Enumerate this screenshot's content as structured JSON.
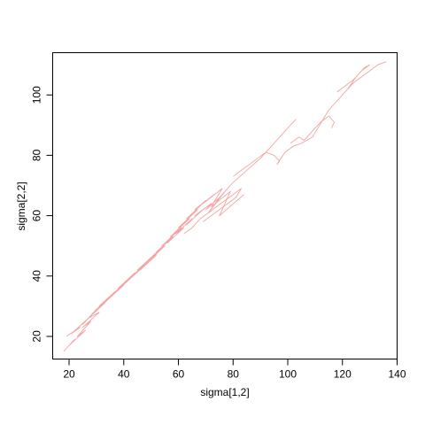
{
  "chart_data": {
    "type": "line",
    "title": "",
    "xlabel": "sigma[1,2]",
    "ylabel": "sigma[2,2]",
    "xlim": [
      14,
      140
    ],
    "ylim": [
      12.5,
      114
    ],
    "x_ticks": [
      20,
      40,
      60,
      80,
      100,
      120,
      140
    ],
    "y_ticks": [
      20,
      40,
      60,
      80,
      100
    ],
    "grid": false,
    "legend": "none",
    "series": [
      {
        "color": "#F4A4A4",
        "x": [
          18,
          22,
          20,
          26,
          23,
          28,
          25,
          31,
          27,
          33,
          30,
          35,
          31,
          37,
          34,
          40,
          36,
          42,
          38,
          44,
          41,
          47,
          43,
          49,
          46,
          52,
          48,
          55,
          51,
          58,
          54,
          61,
          57,
          64,
          60,
          67,
          63,
          70,
          66,
          73,
          69,
          76,
          72,
          79,
          75,
          84
        ],
        "y": [
          15,
          19,
          17,
          22,
          20,
          25,
          23,
          28,
          26,
          31,
          29,
          33,
          30,
          35,
          32,
          37,
          34,
          39,
          36,
          41,
          38,
          43,
          40,
          45,
          42,
          47,
          44,
          50,
          47,
          53,
          50,
          56,
          53,
          59,
          56,
          62,
          59,
          65,
          62,
          67,
          64,
          69,
          63,
          68,
          60,
          67
        ]
      },
      {
        "color": "#F4A4A4",
        "x": [
          19,
          24,
          21,
          27,
          25,
          30,
          28,
          34,
          31,
          37,
          35,
          41,
          38,
          44,
          42,
          48,
          45,
          51,
          49,
          55,
          52,
          58,
          56,
          62,
          59,
          65,
          63,
          69,
          66,
          72,
          70,
          75,
          71,
          77,
          74,
          80,
          85,
          90,
          95,
          99,
          103
        ],
        "y": [
          20,
          23,
          21,
          26,
          24,
          29,
          27,
          32,
          30,
          35,
          33,
          38,
          36,
          41,
          39,
          44,
          42,
          47,
          45,
          50,
          48,
          53,
          51,
          56,
          54,
          59,
          57,
          62,
          60,
          64,
          62,
          66,
          61,
          68,
          65,
          71,
          75,
          79,
          84,
          88,
          92
        ]
      },
      {
        "color": "#F4A4A4",
        "x": [
          80,
          83,
          86,
          89,
          92,
          95,
          97,
          96,
          99,
          102,
          105,
          107,
          109,
          111,
          113,
          115,
          118,
          121,
          124,
          127,
          130,
          133,
          136
        ],
        "y": [
          73,
          75,
          77,
          79,
          81,
          80,
          78,
          77,
          81,
          83,
          84,
          85,
          86,
          89,
          92,
          95,
          98,
          101,
          104,
          106,
          108,
          110,
          111
        ]
      },
      {
        "color": "#F4A4A4",
        "x": [
          101,
          104,
          106,
          109,
          112,
          115,
          117,
          116
        ],
        "y": [
          84,
          86,
          85,
          88,
          91,
          93,
          91,
          89
        ]
      },
      {
        "color": "#F4A4A4",
        "x": [
          118,
          121,
          124,
          127,
          130,
          128,
          125,
          122
        ],
        "y": [
          101,
          103,
          105,
          108,
          110,
          109,
          106,
          102
        ]
      },
      {
        "color": "#F4A4A4",
        "x": [
          62,
          65,
          68,
          71,
          74,
          77,
          80,
          83,
          81,
          78,
          75,
          72,
          69
        ],
        "y": [
          54,
          56,
          59,
          61,
          63,
          65,
          67,
          69,
          66,
          64,
          62,
          60,
          58
        ]
      }
    ]
  }
}
